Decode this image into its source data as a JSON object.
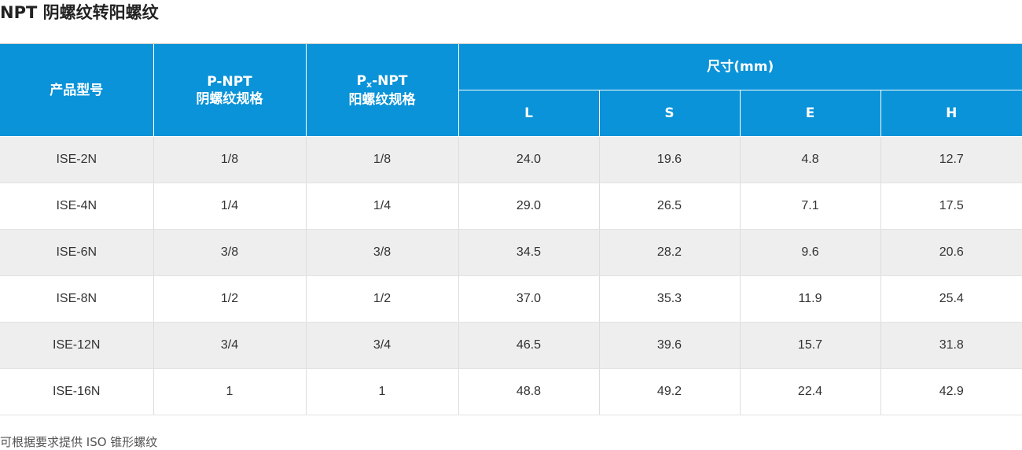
{
  "title": "NPT 阴螺纹转阳螺纹",
  "header": {
    "model": "产品型号",
    "p_npt_line1": "P-NPT",
    "p_npt_line2": "阴螺纹规格",
    "px_p": "P",
    "px_sub": "x",
    "px_rest": "-NPT",
    "px_line2": "阳螺纹规格",
    "dimensions": "尺寸(mm)",
    "L": "L",
    "S": "S",
    "E": "E",
    "H": "H"
  },
  "rows": [
    [
      "ISE-2N",
      "1/8",
      "1/8",
      "24.0",
      "19.6",
      "4.8",
      "12.7"
    ],
    [
      "ISE-4N",
      "1/4",
      "1/4",
      "29.0",
      "26.5",
      "7.1",
      "17.5"
    ],
    [
      "ISE-6N",
      "3/8",
      "3/8",
      "34.5",
      "28.2",
      "9.6",
      "20.6"
    ],
    [
      "ISE-8N",
      "1/2",
      "1/2",
      "37.0",
      "35.3",
      "11.9",
      "25.4"
    ],
    [
      "ISE-12N",
      "3/4",
      "3/4",
      "46.5",
      "39.6",
      "15.7",
      "31.8"
    ],
    [
      "ISE-16N",
      "1",
      "1",
      "48.8",
      "49.2",
      "22.4",
      "42.9"
    ]
  ],
  "footnote": "可根据要求提供 ISO 锥形螺纹",
  "colors": {
    "header_bg": "#0a93d8",
    "stripe": "#eeeeee"
  }
}
